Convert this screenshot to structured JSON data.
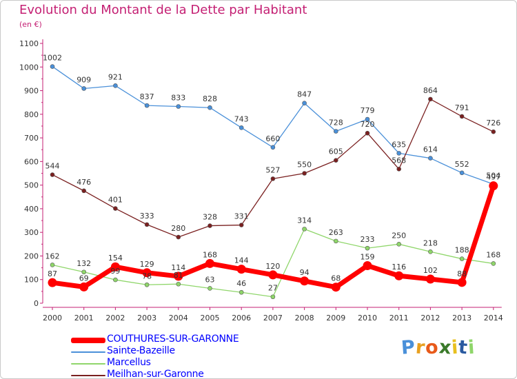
{
  "chart_data": {
    "type": "line",
    "title": "Evolution du Montant de la Dette par Habitant",
    "subtitle": "(en €)",
    "x": [
      2000,
      2001,
      2002,
      2003,
      2004,
      2005,
      2006,
      2007,
      2008,
      2009,
      2010,
      2011,
      2012,
      2013,
      2014
    ],
    "ylim": [
      0,
      1100
    ],
    "yticks": [
      0,
      100,
      200,
      300,
      400,
      500,
      600,
      700,
      800,
      900,
      1000,
      1100
    ],
    "grid": false,
    "legend_position": "bottom-left",
    "series": [
      {
        "name": "COUTHURES-SUR-GARONNE",
        "color": "#ff0000",
        "label_color": "#0000ff",
        "values": [
          87,
          69,
          154,
          129,
          114,
          168,
          144,
          120,
          94,
          68,
          159,
          116,
          102,
          88,
          497
        ]
      },
      {
        "name": "Sainte-Bazeille",
        "color": "#4a90d9",
        "label_color": "#0000ff",
        "values": [
          1002,
          909,
          921,
          837,
          833,
          828,
          743,
          660,
          847,
          728,
          779,
          635,
          614,
          552,
          504
        ]
      },
      {
        "name": "Marcellus",
        "color": "#8fd66a",
        "label_color": "#0000ff",
        "values": [
          162,
          132,
          99,
          78,
          81,
          63,
          46,
          27,
          314,
          263,
          233,
          250,
          218,
          188,
          168
        ]
      },
      {
        "name": "Meilhan-sur-Garonne",
        "color": "#7a2020",
        "label_color": "#0000ff",
        "values": [
          544,
          476,
          401,
          333,
          280,
          328,
          331,
          527,
          550,
          605,
          720,
          568,
          864,
          791,
          726
        ]
      }
    ]
  },
  "brand": {
    "letters": [
      "P",
      "r",
      "o",
      "x",
      "i",
      "t",
      "i"
    ],
    "colors": [
      "#4a90d9",
      "#e8a020",
      "#e85a1a",
      "#3a7a2a",
      "#e8c020",
      "#2a5aa0",
      "#8fd66a"
    ]
  }
}
